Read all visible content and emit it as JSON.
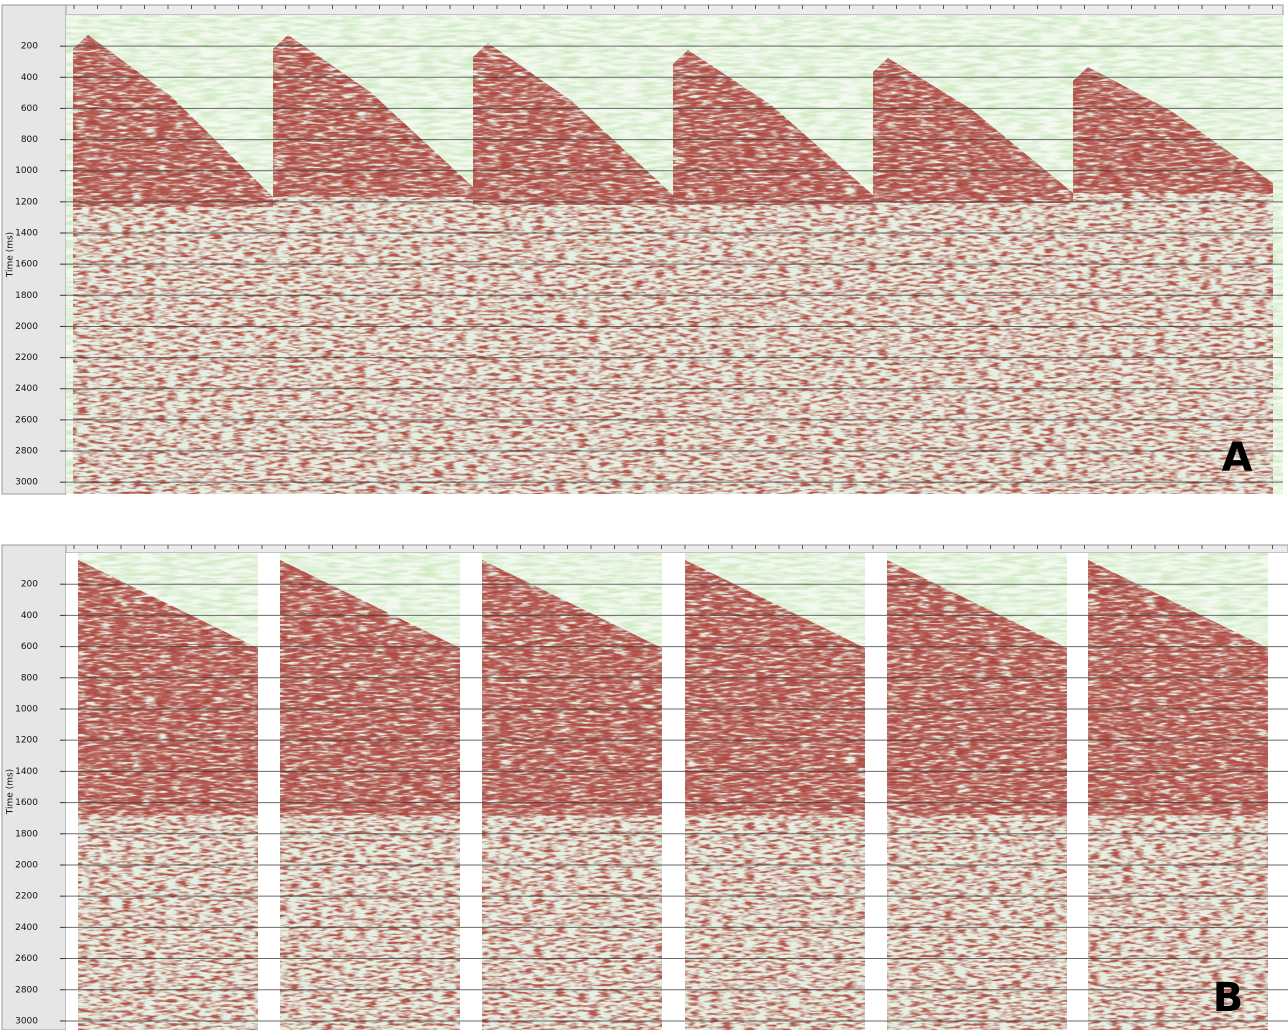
{
  "panels": [
    {
      "label": "A",
      "y_axis_title": "Time (ms)",
      "ylim": [
        0,
        3076
      ],
      "yticks": [
        200,
        400,
        600,
        800,
        1000,
        1200,
        1400,
        1600,
        1800,
        2000,
        2200,
        2400,
        2600,
        2800,
        3000
      ]
    },
    {
      "label": "B",
      "y_axis_title": "Time (ms)",
      "ylim": [
        0,
        3058
      ],
      "yticks": [
        200,
        400,
        600,
        800,
        1000,
        1200,
        1400,
        1600,
        1800,
        2000,
        2200,
        2400,
        2600,
        2800,
        3000
      ]
    }
  ]
}
